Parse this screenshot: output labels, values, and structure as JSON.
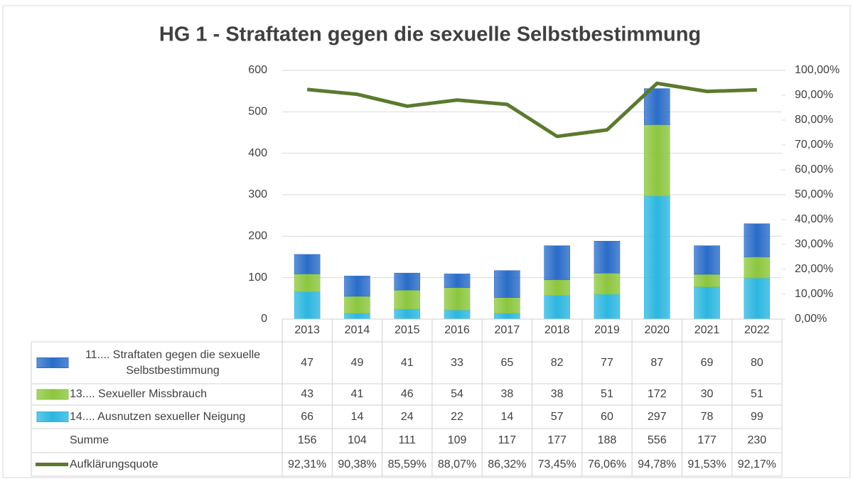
{
  "chart_data": {
    "type": "bar",
    "stacked": true,
    "title": "HG 1 - Straftaten gegen die sexuelle Selbstbestimmung",
    "categories": [
      "2013",
      "2014",
      "2015",
      "2016",
      "2017",
      "2018",
      "2019",
      "2020",
      "2021",
      "2022"
    ],
    "series": [
      {
        "name": "11.... Straftaten gegen die sexuelle Selbstbestimmung",
        "color": "#2a6cc8",
        "values": [
          47,
          49,
          41,
          33,
          65,
          82,
          77,
          87,
          69,
          80
        ]
      },
      {
        "name": "13.... Sexueller Missbrauch",
        "color": "#8cc63e",
        "values": [
          43,
          41,
          46,
          54,
          38,
          38,
          51,
          172,
          30,
          51
        ]
      },
      {
        "name": "14.... Ausnutzen sexueller Neigung",
        "color": "#2cb6e0",
        "values": [
          66,
          14,
          24,
          22,
          14,
          57,
          60,
          297,
          78,
          99
        ]
      },
      {
        "name": "Aufklärungsquote",
        "type": "line",
        "axis": "y2",
        "color": "#5b7a2e",
        "values": [
          92.31,
          90.38,
          85.59,
          88.07,
          86.32,
          73.45,
          76.06,
          94.78,
          91.53,
          92.17
        ],
        "value_labels": [
          "92,31%",
          "90,38%",
          "85,59%",
          "88,07%",
          "86,32%",
          "73,45%",
          "76,06%",
          "94,78%",
          "91,53%",
          "92,17%"
        ]
      }
    ],
    "sum_row": {
      "name": "Summe",
      "values": [
        156,
        104,
        111,
        109,
        117,
        177,
        188,
        556,
        177,
        230
      ]
    },
    "ylim": [
      0,
      600
    ],
    "yticks": [
      0,
      100,
      200,
      300,
      400,
      500,
      600
    ],
    "y2lim": [
      0,
      100
    ],
    "y2ticks": [
      {
        "value": 0,
        "label": "0,00%"
      },
      {
        "value": 10,
        "label": "10,00%"
      },
      {
        "value": 20,
        "label": "20,00%"
      },
      {
        "value": 30,
        "label": "30,00%"
      },
      {
        "value": 40,
        "label": "40,00%"
      },
      {
        "value": 50,
        "label": "50,00%"
      },
      {
        "value": 60,
        "label": "60,00%"
      },
      {
        "value": 70,
        "label": "70,00%"
      },
      {
        "value": 80,
        "label": "80,00%"
      },
      {
        "value": 90,
        "label": "90,00%"
      },
      {
        "value": 100,
        "label": "100,00%"
      }
    ],
    "grid": true
  }
}
